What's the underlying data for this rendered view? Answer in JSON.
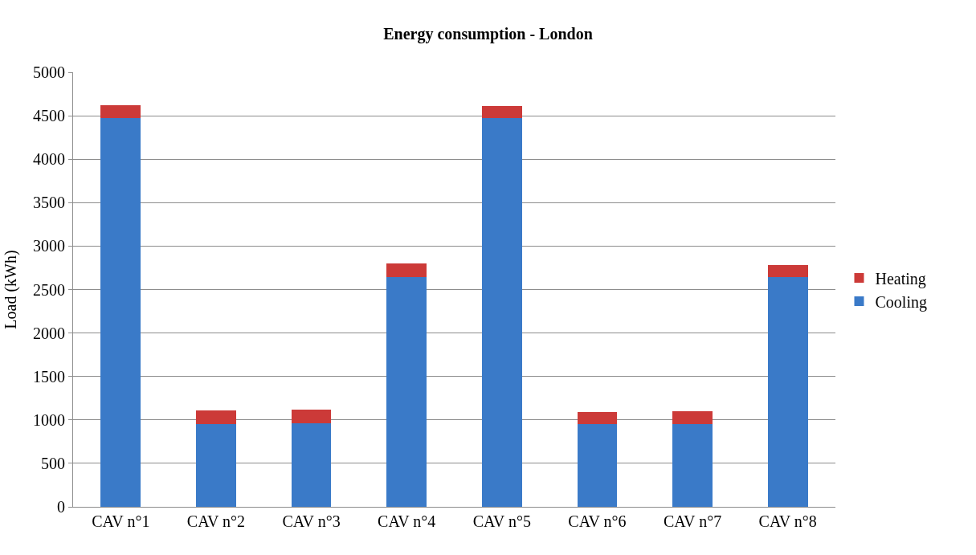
{
  "chart_data": {
    "type": "bar",
    "title": "Energy consumption - London",
    "ylabel": "Load (kWh)",
    "categories": [
      "CAV n°1",
      "CAV n°2",
      "CAV n°3",
      "CAV n°4",
      "CAV n°5",
      "CAV n°6",
      "CAV n°7",
      "CAV n°8"
    ],
    "stacked": true,
    "series": [
      {
        "name": "Cooling",
        "color": "#3a7ac8",
        "values": [
          4470,
          950,
          960,
          2640,
          4470,
          950,
          950,
          2640
        ]
      },
      {
        "name": "Heating",
        "color": "#cc3a38",
        "values": [
          155,
          160,
          160,
          160,
          140,
          140,
          150,
          140
        ]
      }
    ],
    "ylim": [
      0,
      5000
    ],
    "yticks": [
      0,
      500,
      1000,
      1500,
      2000,
      2500,
      3000,
      3500,
      4000,
      4500,
      5000
    ],
    "grid": "y",
    "legend": "right"
  }
}
